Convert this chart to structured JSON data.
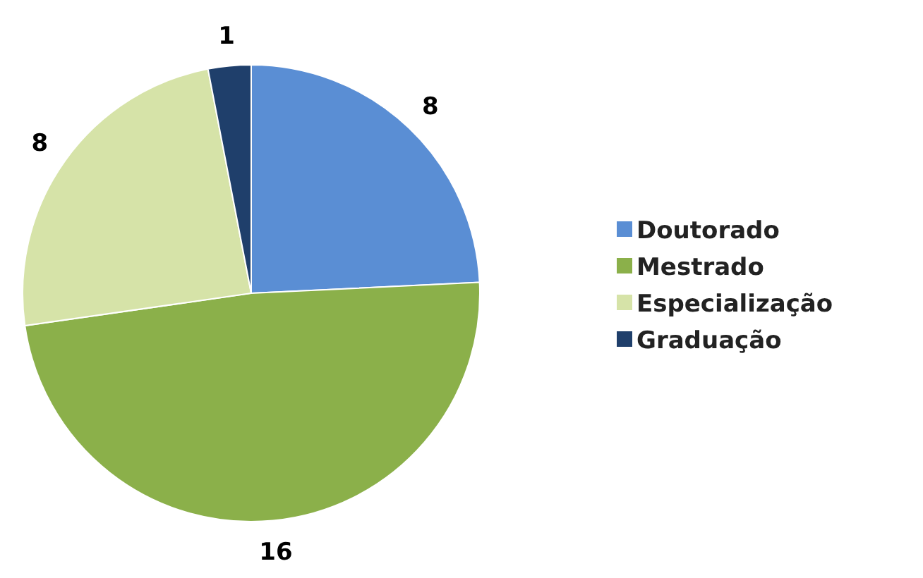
{
  "chart_data": {
    "type": "pie",
    "categories": [
      "Doutorado",
      "Mestrado",
      "Especialização",
      "Graduação"
    ],
    "values": [
      8,
      16,
      8,
      1
    ],
    "colors": [
      "#5a8ed4",
      "#8bb04a",
      "#d6e3a8",
      "#1f3f6b"
    ],
    "data_labels": true,
    "legend": "right"
  }
}
